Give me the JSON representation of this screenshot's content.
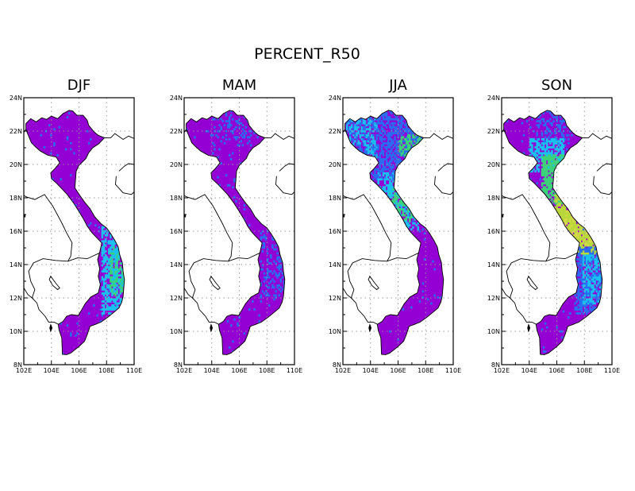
{
  "figure": {
    "title": "PERCENT_R50",
    "lon_range": [
      102,
      110
    ],
    "lat_range": [
      8,
      24
    ],
    "x_ticks": [
      {
        "value": 102,
        "label": "102E"
      },
      {
        "value": 104,
        "label": "104E"
      },
      {
        "value": 106,
        "label": "106E"
      },
      {
        "value": 108,
        "label": "108E"
      },
      {
        "value": 110,
        "label": "110E"
      }
    ],
    "y_ticks": [
      {
        "value": 8,
        "label": "8N"
      },
      {
        "value": 10,
        "label": "10N"
      },
      {
        "value": 12,
        "label": "12N"
      },
      {
        "value": 14,
        "label": "14N"
      },
      {
        "value": 16,
        "label": "16N"
      },
      {
        "value": 18,
        "label": "18N"
      },
      {
        "value": 20,
        "label": "20N"
      },
      {
        "value": 22,
        "label": "22N"
      },
      {
        "value": 24,
        "label": "24N"
      }
    ],
    "grid": "dotted",
    "colors": {
      "base": "#9400d3",
      "blue": "#2a6cf0",
      "cyan": "#19c0f0",
      "green": "#3cd27a",
      "yellowgreen": "#b9d83a",
      "yellow": "#d8d84a",
      "land_outline": "#000000",
      "grid": "#9a9a9a"
    }
  },
  "panels": [
    {
      "title": "DJF",
      "highlights": [
        {
          "lat": [
            11.0,
            16.2
          ],
          "lon": [
            107.6,
            109.4
          ],
          "color": "cyan",
          "intensity": 0.6
        },
        {
          "lat": [
            12.0,
            15.0
          ],
          "lon": [
            108.2,
            109.2
          ],
          "color": "green",
          "intensity": 0.4
        }
      ]
    },
    {
      "title": "MAM",
      "highlights": [
        {
          "lat": [
            21.0,
            23.3
          ],
          "lon": [
            104.0,
            106.8
          ],
          "color": "blue",
          "intensity": 0.25
        },
        {
          "lat": [
            12.0,
            16.0
          ],
          "lon": [
            107.5,
            109.2
          ],
          "color": "blue",
          "intensity": 0.25
        }
      ]
    },
    {
      "title": "JJA",
      "highlights": [
        {
          "lat": [
            19.0,
            23.3
          ],
          "lon": [
            102.2,
            107.8
          ],
          "color": "blue",
          "intensity": 0.55
        },
        {
          "lat": [
            20.0,
            22.8
          ],
          "lon": [
            102.2,
            104.5
          ],
          "color": "cyan",
          "intensity": 0.35
        },
        {
          "lat": [
            20.4,
            21.8
          ],
          "lon": [
            106.0,
            107.8
          ],
          "color": "green",
          "intensity": 0.5
        },
        {
          "lat": [
            16.0,
            19.5
          ],
          "lon": [
            104.5,
            107.5
          ],
          "color": "cyan",
          "intensity": 0.55
        },
        {
          "lat": [
            16.5,
            18.5
          ],
          "lon": [
            105.3,
            107.0
          ],
          "color": "green",
          "intensity": 0.4
        }
      ]
    },
    {
      "title": "SON",
      "highlights": [
        {
          "lat": [
            21.0,
            23.3
          ],
          "lon": [
            104.5,
            107.0
          ],
          "color": "blue",
          "intensity": 0.3
        },
        {
          "lat": [
            19.5,
            21.5
          ],
          "lon": [
            104.0,
            106.5
          ],
          "color": "cyan",
          "intensity": 0.6
        },
        {
          "lat": [
            17.5,
            20.5
          ],
          "lon": [
            104.8,
            107.0
          ],
          "color": "green",
          "intensity": 0.7
        },
        {
          "lat": [
            14.5,
            18.5
          ],
          "lon": [
            105.8,
            109.2
          ],
          "color": "yellowgreen",
          "intensity": 0.85
        },
        {
          "lat": [
            15.0,
            17.5
          ],
          "lon": [
            106.5,
            108.8
          ],
          "color": "yellow",
          "intensity": 0.4
        },
        {
          "lat": [
            11.0,
            15.0
          ],
          "lon": [
            107.2,
            109.4
          ],
          "color": "blue",
          "intensity": 0.6
        },
        {
          "lat": [
            11.5,
            14.5
          ],
          "lon": [
            107.8,
            109.3
          ],
          "color": "cyan",
          "intensity": 0.5
        }
      ]
    }
  ]
}
